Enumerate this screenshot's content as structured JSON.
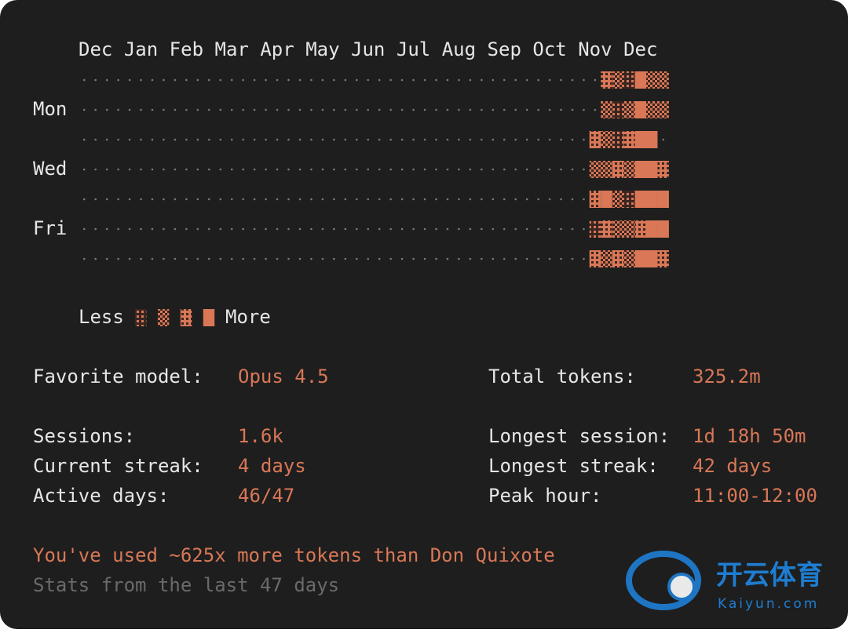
{
  "months": [
    "Dec",
    "Jan",
    "Feb",
    "Mar",
    "Apr",
    "May",
    "Jun",
    "Jul",
    "Aug",
    "Sep",
    "Oct",
    "Nov",
    "Dec"
  ],
  "day_labels": [
    null,
    "Mon",
    null,
    "Wed",
    null,
    "Fri",
    null
  ],
  "heatmap": {
    "rows": [
      [
        0,
        0,
        0,
        0,
        0,
        0,
        0,
        0,
        0,
        0,
        0,
        0,
        0,
        0,
        0,
        0,
        0,
        0,
        0,
        0,
        0,
        0,
        0,
        0,
        0,
        0,
        0,
        0,
        0,
        0,
        0,
        0,
        0,
        0,
        0,
        0,
        0,
        0,
        0,
        0,
        0,
        0,
        0,
        0,
        0,
        0,
        3,
        2,
        1,
        4,
        2,
        2
      ],
      [
        0,
        0,
        0,
        0,
        0,
        0,
        0,
        0,
        0,
        0,
        0,
        0,
        0,
        0,
        0,
        0,
        0,
        0,
        0,
        0,
        0,
        0,
        0,
        0,
        0,
        0,
        0,
        0,
        0,
        0,
        0,
        0,
        0,
        0,
        0,
        0,
        0,
        0,
        0,
        0,
        0,
        0,
        0,
        0,
        0,
        0,
        2,
        1,
        2,
        4,
        2,
        2
      ],
      [
        0,
        0,
        0,
        0,
        0,
        0,
        0,
        0,
        0,
        0,
        0,
        0,
        0,
        0,
        0,
        0,
        0,
        0,
        0,
        0,
        0,
        0,
        0,
        0,
        0,
        0,
        0,
        0,
        0,
        0,
        0,
        0,
        0,
        0,
        0,
        0,
        0,
        0,
        0,
        0,
        0,
        0,
        0,
        0,
        0,
        3,
        2,
        1,
        3,
        4,
        4,
        0
      ],
      [
        0,
        0,
        0,
        0,
        0,
        0,
        0,
        0,
        0,
        0,
        0,
        0,
        0,
        0,
        0,
        0,
        0,
        0,
        0,
        0,
        0,
        0,
        0,
        0,
        0,
        0,
        0,
        0,
        0,
        0,
        0,
        0,
        0,
        0,
        0,
        0,
        0,
        0,
        0,
        0,
        0,
        0,
        0,
        0,
        0,
        2,
        2,
        3,
        2,
        4,
        4,
        3
      ],
      [
        0,
        0,
        0,
        0,
        0,
        0,
        0,
        0,
        0,
        0,
        0,
        0,
        0,
        0,
        0,
        0,
        0,
        0,
        0,
        0,
        0,
        0,
        0,
        0,
        0,
        0,
        0,
        0,
        0,
        0,
        0,
        0,
        0,
        0,
        0,
        0,
        0,
        0,
        0,
        0,
        0,
        0,
        0,
        0,
        0,
        3,
        4,
        2,
        1,
        4,
        4,
        4
      ],
      [
        0,
        0,
        0,
        0,
        0,
        0,
        0,
        0,
        0,
        0,
        0,
        0,
        0,
        0,
        0,
        0,
        0,
        0,
        0,
        0,
        0,
        0,
        0,
        0,
        0,
        0,
        0,
        0,
        0,
        0,
        0,
        0,
        0,
        0,
        0,
        0,
        0,
        0,
        0,
        0,
        0,
        0,
        0,
        0,
        0,
        1,
        3,
        2,
        2,
        3,
        4,
        4
      ],
      [
        0,
        0,
        0,
        0,
        0,
        0,
        0,
        0,
        0,
        0,
        0,
        0,
        0,
        0,
        0,
        0,
        0,
        0,
        0,
        0,
        0,
        0,
        0,
        0,
        0,
        0,
        0,
        0,
        0,
        0,
        0,
        0,
        0,
        0,
        0,
        0,
        0,
        0,
        0,
        0,
        0,
        0,
        0,
        0,
        0,
        3,
        2,
        3,
        2,
        4,
        4,
        3
      ]
    ]
  },
  "legend": {
    "less": "Less",
    "levels": [
      1,
      2,
      3,
      4
    ],
    "more": "More"
  },
  "stats": {
    "favorite_model": {
      "label": "Favorite model:",
      "value": "Opus 4.5"
    },
    "total_tokens": {
      "label": "Total tokens:",
      "value": "325.2m"
    },
    "sessions": {
      "label": "Sessions:",
      "value": "1.6k"
    },
    "longest_session": {
      "label": "Longest session:",
      "value": "1d 18h 50m"
    },
    "current_streak": {
      "label": "Current streak:",
      "value": "4 days"
    },
    "longest_streak": {
      "label": "Longest streak:",
      "value": "42 days"
    },
    "active_days": {
      "label": "Active days:",
      "value": "46/47"
    },
    "peak_hour": {
      "label": "Peak hour:",
      "value": "11:00-12:00"
    }
  },
  "fun_fact": "You've used ~625x more tokens than Don Quixote",
  "footer": "Stats from the last 47 days",
  "watermark": {
    "brand": "开云体育",
    "site": "Kaiyun.com"
  }
}
